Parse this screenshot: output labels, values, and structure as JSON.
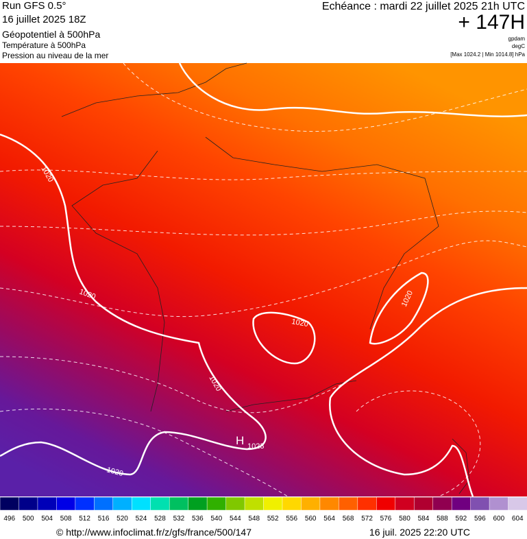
{
  "header": {
    "run": "Run GFS 0.5°",
    "date": "16 juillet 2025 18Z",
    "field1": "Géopotentiel à 500hPa",
    "field2": "Température à 500hPa",
    "field3": "Pression au niveau de la mer",
    "echeance": "Echéance : mardi 22 juillet 2025 21h UTC",
    "lead": "+ 147H",
    "unit1": "gpdam",
    "unit2": "degC",
    "range": "[Max 1024.2 | Min 1014.8] hPa"
  },
  "map": {
    "contour_labels": [
      "1020",
      "1020",
      "1020",
      "1020",
      "1020",
      "1020"
    ],
    "high": {
      "letter": "H",
      "value": "1023"
    }
  },
  "legend": {
    "labels": [
      496,
      500,
      504,
      508,
      512,
      516,
      520,
      524,
      528,
      532,
      536,
      540,
      544,
      548,
      552,
      556,
      560,
      564,
      568,
      572,
      576,
      580,
      584,
      588,
      592,
      596,
      600,
      604
    ],
    "colors": [
      "#000060",
      "#00008a",
      "#0000b8",
      "#0000e6",
      "#0030ff",
      "#0070ff",
      "#00b0ff",
      "#00e0ff",
      "#00e0b0",
      "#00c060",
      "#00a020",
      "#30b000",
      "#80c800",
      "#c0e000",
      "#f0f000",
      "#ffd800",
      "#ffb000",
      "#ff8800",
      "#ff6000",
      "#ff3000",
      "#f00000",
      "#d00020",
      "#b00030",
      "#900050",
      "#700080",
      "#8050b0",
      "#b090d0",
      "#d8c8e8"
    ]
  },
  "footer": {
    "url": "© http://www.infoclimat.fr/z/gfs/france/500/147",
    "timestamp": "16 juil. 2025 22:20 UTC"
  }
}
